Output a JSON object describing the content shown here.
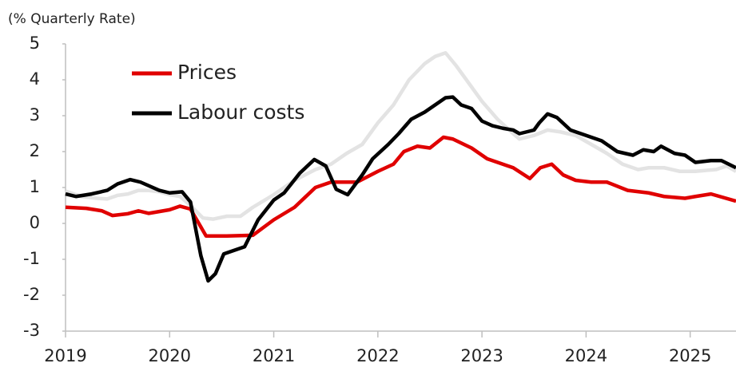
{
  "chart_data": {
    "type": "line",
    "subtitle": "(% Quarterly Rate)",
    "xlim": [
      2019,
      2025.44
    ],
    "xticks": [
      2019,
      2020,
      2021,
      2022,
      2023,
      2024,
      2025
    ],
    "ylim": [
      -3,
      5
    ],
    "yticks": [
      -3,
      -2,
      -1,
      0,
      1,
      2,
      3,
      4,
      5
    ],
    "series": [
      {
        "color": "#e3e3e3",
        "x": [
          2019,
          2019.15,
          2019.3,
          2019.4,
          2019.5,
          2019.6,
          2019.7,
          2019.8,
          2019.9,
          2020.0,
          2020.1,
          2020.2,
          2020.32,
          2020.42,
          2020.55,
          2020.68,
          2020.8,
          2021.0,
          2021.2,
          2021.4,
          2021.55,
          2021.7,
          2021.85,
          2022.0,
          2022.15,
          2022.3,
          2022.45,
          2022.55,
          2022.65,
          2022.75,
          2022.85,
          2023.0,
          2023.15,
          2023.3,
          2023.36,
          2023.5,
          2023.63,
          2023.75,
          2023.9,
          2024.05,
          2024.2,
          2024.35,
          2024.5,
          2024.6,
          2024.75,
          2024.9,
          2025.05,
          2025.25,
          2025.35,
          2025.44
        ],
        "values": [
          0.9,
          0.75,
          0.7,
          0.68,
          0.78,
          0.82,
          0.92,
          0.92,
          0.88,
          0.8,
          0.75,
          0.5,
          0.15,
          0.12,
          0.2,
          0.2,
          0.45,
          0.8,
          1.2,
          1.5,
          1.65,
          1.95,
          2.2,
          2.8,
          3.3,
          4.0,
          4.45,
          4.65,
          4.75,
          4.4,
          4.0,
          3.4,
          2.9,
          2.5,
          2.35,
          2.45,
          2.6,
          2.55,
          2.45,
          2.2,
          1.95,
          1.65,
          1.5,
          1.55,
          1.55,
          1.45,
          1.45,
          1.5,
          1.6,
          1.45
        ]
      },
      {
        "name": "Prices",
        "color": "#e00000",
        "x": [
          2019,
          2019.2,
          2019.35,
          2019.45,
          2019.6,
          2019.7,
          2019.8,
          2020.0,
          2020.1,
          2020.2,
          2020.35,
          2020.55,
          2020.8,
          2021.0,
          2021.2,
          2021.4,
          2021.55,
          2021.8,
          2022.0,
          2022.15,
          2022.25,
          2022.38,
          2022.5,
          2022.63,
          2022.72,
          2022.9,
          2023.05,
          2023.2,
          2023.3,
          2023.46,
          2023.56,
          2023.67,
          2023.78,
          2023.9,
          2024.05,
          2024.2,
          2024.4,
          2024.6,
          2024.75,
          2024.95,
          2025.05,
          2025.2,
          2025.44
        ],
        "values": [
          0.45,
          0.42,
          0.35,
          0.22,
          0.27,
          0.35,
          0.28,
          0.38,
          0.48,
          0.4,
          -0.35,
          -0.35,
          -0.33,
          0.1,
          0.45,
          1.0,
          1.15,
          1.15,
          1.45,
          1.65,
          2.0,
          2.15,
          2.1,
          2.4,
          2.35,
          2.1,
          1.8,
          1.65,
          1.55,
          1.25,
          1.55,
          1.65,
          1.35,
          1.2,
          1.15,
          1.15,
          0.92,
          0.85,
          0.75,
          0.7,
          0.75,
          0.82,
          0.62
        ]
      },
      {
        "name": "Labour costs",
        "color": "#000000",
        "x": [
          2019,
          2019.1,
          2019.25,
          2019.4,
          2019.5,
          2019.62,
          2019.72,
          2019.9,
          2020.0,
          2020.12,
          2020.2,
          2020.3,
          2020.37,
          2020.44,
          2020.52,
          2020.72,
          2020.85,
          2021.0,
          2021.1,
          2021.25,
          2021.39,
          2021.5,
          2021.6,
          2021.71,
          2021.85,
          2021.95,
          2022.1,
          2022.2,
          2022.32,
          2022.45,
          2022.55,
          2022.65,
          2022.72,
          2022.8,
          2022.9,
          2023.0,
          2023.1,
          2023.2,
          2023.3,
          2023.36,
          2023.5,
          2023.55,
          2023.63,
          2023.72,
          2023.85,
          2024.0,
          2024.15,
          2024.3,
          2024.45,
          2024.55,
          2024.65,
          2024.72,
          2024.85,
          2024.95,
          2025.05,
          2025.2,
          2025.3,
          2025.44
        ],
        "values": [
          0.82,
          0.75,
          0.82,
          0.92,
          1.1,
          1.22,
          1.15,
          0.92,
          0.85,
          0.88,
          0.6,
          -0.9,
          -1.6,
          -1.4,
          -0.85,
          -0.65,
          0.1,
          0.65,
          0.85,
          1.4,
          1.78,
          1.6,
          0.95,
          0.8,
          1.35,
          1.8,
          2.2,
          2.5,
          2.9,
          3.1,
          3.3,
          3.5,
          3.52,
          3.3,
          3.2,
          2.85,
          2.72,
          2.65,
          2.6,
          2.5,
          2.6,
          2.8,
          3.05,
          2.95,
          2.6,
          2.45,
          2.3,
          2.0,
          1.9,
          2.05,
          2.0,
          2.15,
          1.95,
          1.9,
          1.7,
          1.75,
          1.75,
          1.55
        ]
      }
    ]
  }
}
